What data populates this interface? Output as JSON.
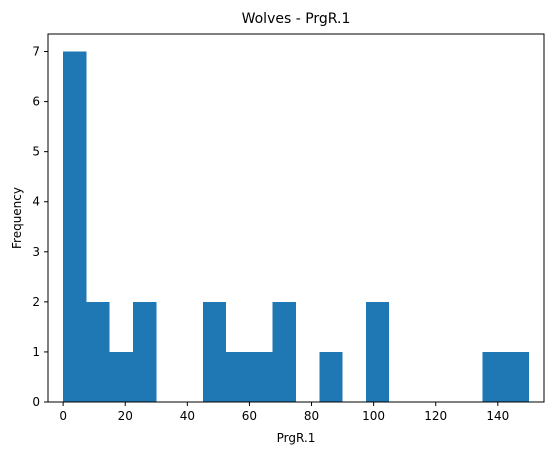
{
  "chart_data": {
    "type": "bar",
    "title": "Wolves - PrgR.1",
    "xlabel": "PrgR.1",
    "ylabel": "Frequency",
    "bin_start": 0,
    "bin_width": 7.5,
    "values": [
      7,
      2,
      1,
      2,
      0,
      0,
      2,
      1,
      1,
      2,
      0,
      1,
      0,
      2,
      0,
      0,
      0,
      0,
      1,
      1
    ],
    "xlim": [
      -4.875,
      154.875
    ],
    "ylim": [
      0,
      7.35
    ],
    "xticks": [
      0,
      20,
      40,
      60,
      80,
      100,
      120,
      140
    ],
    "yticks": [
      0,
      1,
      2,
      3,
      4,
      5,
      6,
      7
    ],
    "bar_color": "#1f77b4",
    "grid": false,
    "legend": "none"
  }
}
